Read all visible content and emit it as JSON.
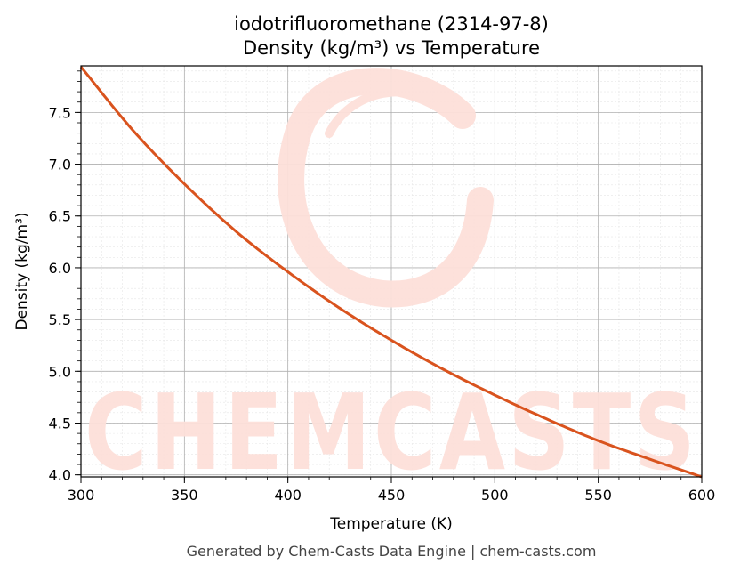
{
  "chart_data": {
    "type": "line",
    "title": "iodotrifluoromethane (2314-97-8)",
    "subtitle": "Density (kg/m³) vs Temperature",
    "xlabel": "Temperature (K)",
    "ylabel": "Density (kg/m³)",
    "xlim": [
      300,
      600
    ],
    "ylim": [
      3.98,
      7.95
    ],
    "xticks": [
      300,
      350,
      400,
      450,
      500,
      550,
      600
    ],
    "xtick_labels": [
      "300",
      "350",
      "400",
      "450",
      "500",
      "550",
      "600"
    ],
    "yticks": [
      4.0,
      4.5,
      5.0,
      5.5,
      6.0,
      6.5,
      7.0,
      7.5
    ],
    "ytick_labels": [
      "4.0",
      "4.5",
      "5.0",
      "5.5",
      "6.0",
      "6.5",
      "7.0",
      "7.5"
    ],
    "grid": true,
    "series": [
      {
        "color": "#d9531e",
        "x": [
          300,
          325,
          350,
          375,
          400,
          425,
          450,
          475,
          500,
          525,
          550,
          575,
          600
        ],
        "y": [
          7.94,
          7.33,
          6.81,
          6.35,
          5.96,
          5.61,
          5.3,
          5.02,
          4.77,
          4.54,
          4.33,
          4.15,
          3.98
        ]
      }
    ]
  },
  "watermark": {
    "text": "CHEMCASTS",
    "color": "#fde0da"
  },
  "footer": "Generated by Chem-Casts Data Engine | chem-casts.com"
}
